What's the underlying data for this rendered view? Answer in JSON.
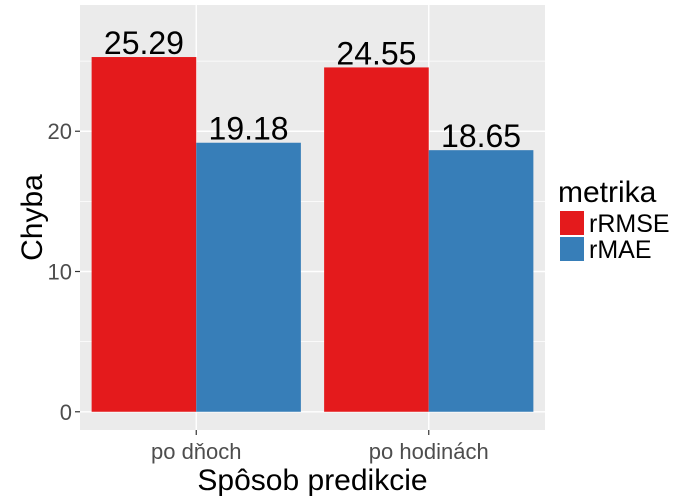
{
  "chart_data": {
    "type": "bar",
    "categories": [
      "po dňoch",
      "po hodinách"
    ],
    "series": [
      {
        "name": "rRMSE",
        "values": [
          25.29,
          24.55
        ],
        "labels": [
          "25.29",
          "24.55"
        ],
        "color": "#e41a1c"
      },
      {
        "name": "rMAE",
        "values": [
          19.18,
          18.65
        ],
        "labels": [
          "19.18",
          "18.65"
        ],
        "color": "#377eb8"
      }
    ],
    "xlabel": "Spôsob predikcie",
    "ylabel": "Chyba",
    "ylim": [
      -1.3,
      29.0
    ],
    "yticks": [
      0,
      10,
      20
    ],
    "ytick_labels": [
      "0",
      "10",
      "20"
    ],
    "grid": true,
    "panel_background": "#ebebeb",
    "legend": {
      "title": "metrika",
      "position": "right"
    }
  }
}
